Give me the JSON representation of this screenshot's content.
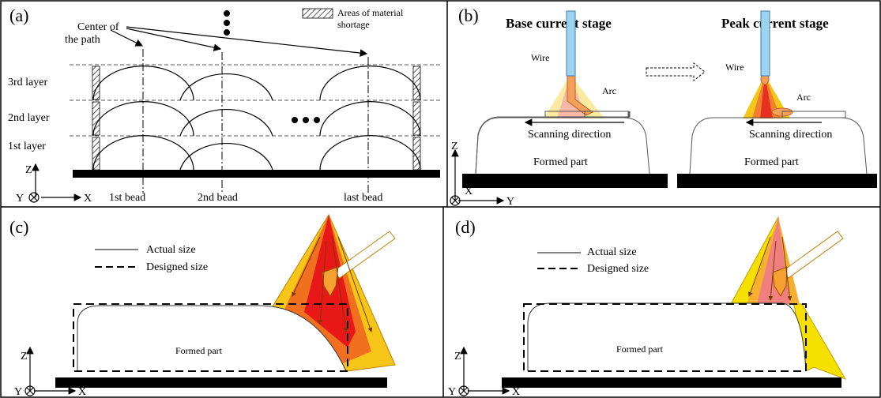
{
  "panels": {
    "a": {
      "label": "(a)",
      "center_of_path": [
        "Center of",
        "the path"
      ],
      "legend": [
        "Areas of material",
        "shortage"
      ],
      "layers": [
        "3rd layer",
        "2nd layer",
        "1st layer"
      ],
      "beads": [
        "1st bead",
        "2nd bead",
        "last bead"
      ],
      "axes": {
        "z": "Z",
        "y": "Y",
        "x": "X"
      }
    },
    "b": {
      "label": "(b)",
      "stages": [
        {
          "title": "Base current stage",
          "wire": "Wire",
          "arc": "Arc",
          "scan": "Scanning direction",
          "part": "Formed part"
        },
        {
          "title": "Peak current stage",
          "wire": "Wire",
          "arc": "Arc",
          "scan": "Scanning direction",
          "part": "Formed part"
        }
      ],
      "axes": {
        "z": "Z",
        "x": "X",
        "y": "Y"
      }
    },
    "c": {
      "label": "(c)",
      "legend": [
        "Actual size",
        "Designed size"
      ],
      "part": "Formed part",
      "axes": {
        "z": "Z",
        "y": "Y",
        "x": "X"
      }
    },
    "d": {
      "label": "(d)",
      "legend": [
        "Actual size",
        "Designed size"
      ],
      "part": "Formed part",
      "axes": {
        "z": "Z",
        "y": "Y",
        "x": "X"
      }
    }
  }
}
